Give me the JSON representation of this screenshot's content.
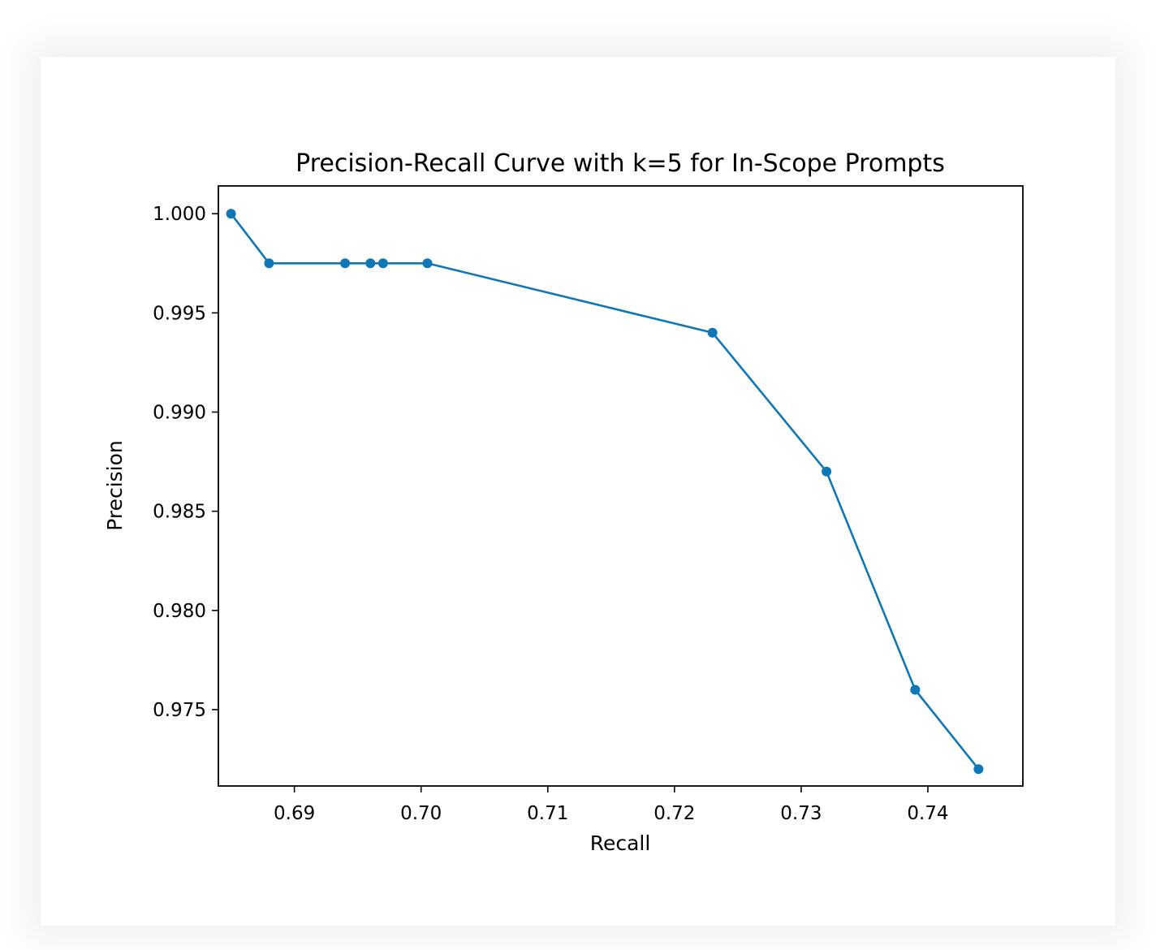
{
  "chart_data": {
    "type": "line",
    "title": "Precision-Recall Curve with k=5 for In-Scope Prompts",
    "xlabel": "Recall",
    "ylabel": "Precision",
    "xlim": [
      0.684,
      0.7475
    ],
    "ylim": [
      0.97115,
      1.0014
    ],
    "xticks": [
      0.69,
      0.7,
      0.71,
      0.72,
      0.73,
      0.74
    ],
    "xtick_labels": [
      "0.69",
      "0.70",
      "0.71",
      "0.72",
      "0.73",
      "0.74"
    ],
    "yticks": [
      0.975,
      0.98,
      0.985,
      0.99,
      0.995,
      1.0
    ],
    "ytick_labels": [
      "0.975",
      "0.980",
      "0.985",
      "0.990",
      "0.995",
      "1.000"
    ],
    "grid": false,
    "series": [
      {
        "color": "#0f77b6",
        "marker": "circle",
        "x": [
          0.685,
          0.688,
          0.694,
          0.696,
          0.697,
          0.7005,
          0.723,
          0.732,
          0.739,
          0.744
        ],
        "y": [
          1.0,
          0.9975,
          0.9975,
          0.9975,
          0.9975,
          0.9975,
          0.994,
          0.987,
          0.976,
          0.972
        ]
      }
    ]
  }
}
